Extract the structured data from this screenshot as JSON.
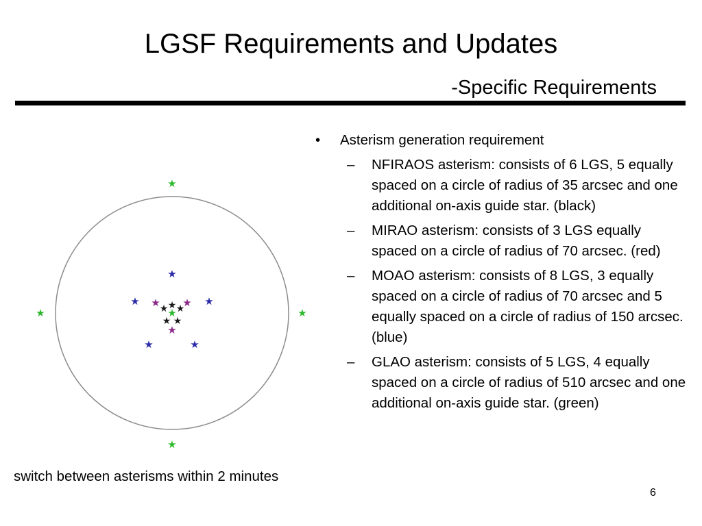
{
  "slide": {
    "title": "LGSF Requirements and Updates",
    "subtitle": "-Specific Requirements",
    "page_number": "6"
  },
  "caption": "switch between asterisms within 2 minutes",
  "bullets": {
    "main_marker": "•",
    "main": "Asterism generation requirement",
    "sub_marker": "–",
    "subs": [
      "NFIRAOS asterism: consists of 6 LGS, 5 equally spaced on a circle of radius of 35 arcsec and one additional on-axis guide star. (black)",
      "MIRAO asterism: consists of 3 LGS equally spaced on a circle of radius of 70 arcsec. (red)",
      "MOAO asterism: consists of 8 LGS, 3 equally spaced on a circle of radius of 70 arcsec and 5 equally spaced on a circle of radius of 150 arcsec. (blue)",
      "GLAO asterism: consists of 5 LGS, 4 equally spaced on a circle of radius of 510 arcsec and one additional on-axis guide star. (green)"
    ]
  },
  "diagram": {
    "icon": "star-icon",
    "colors": {
      "nfiraos": "#1a1a1a",
      "mirao": "#8b2a8b",
      "moao": "#2a2aa8",
      "glao": "#2eb82e",
      "circle": "#8c8c8c"
    }
  }
}
